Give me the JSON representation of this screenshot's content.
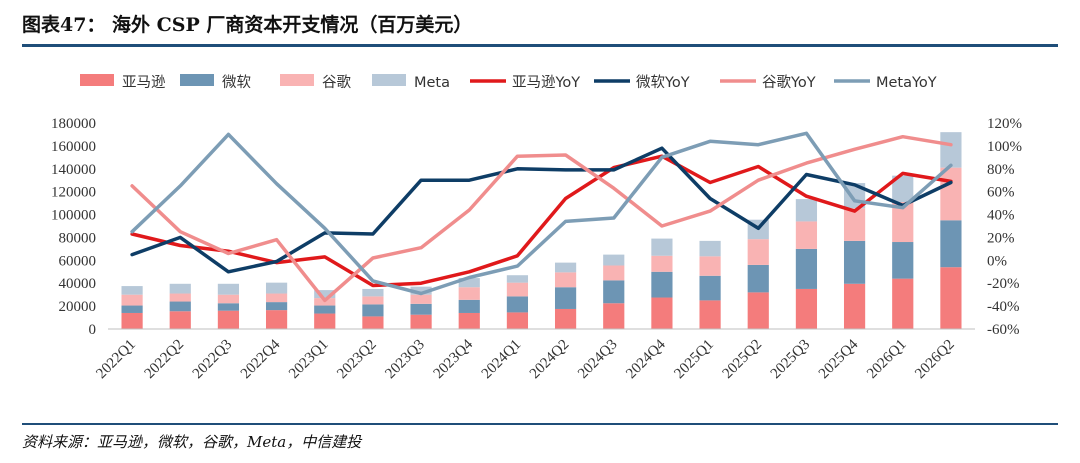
{
  "header": {
    "title": "图表47：  海外 CSP 厂商资本开支情况（百万美元）",
    "source": "资料来源：亚马逊，微软，谷歌，Meta，中信建投"
  },
  "colors": {
    "amazon_bar": "#f47c7c",
    "msft_bar": "#6d95b4",
    "google_bar": "#f9b3b3",
    "meta_bar": "#b7c8d8",
    "amazon_line": "#e0191b",
    "msft_line": "#0e3d66",
    "google_line": "#f08d8d",
    "meta_line": "#7d9db5",
    "rule": "#1f4e79"
  },
  "chart_data": {
    "type": "bar",
    "stacked": true,
    "categories": [
      "2022Q1",
      "2022Q2",
      "2022Q3",
      "2022Q4",
      "2023Q1",
      "2023Q2",
      "2023Q3",
      "2023Q4",
      "2024Q1",
      "2024Q2",
      "2024Q3",
      "2024Q4",
      "2025Q1",
      "2025Q2",
      "2025Q3",
      "2025Q4",
      "2026Q1",
      "2026Q2"
    ],
    "y_ticks": [
      "0",
      "20000",
      "40000",
      "60000",
      "80000",
      "100000",
      "120000",
      "140000",
      "160000",
      "180000"
    ],
    "ylim": [
      0,
      180000
    ],
    "y2_ticks": [
      "-60%",
      "-40%",
      "-20%",
      "0%",
      "20%",
      "40%",
      "60%",
      "80%",
      "100%",
      "120%"
    ],
    "y2lim": [
      -60,
      120
    ],
    "legend": [
      "亚马逊",
      "微软",
      "谷歌",
      "Meta",
      "亚马逊YoY",
      "微软YoY",
      "谷歌YoY",
      "MetaYoY"
    ],
    "bar_series": [
      {
        "name": "亚马逊",
        "values": [
          14000,
          15500,
          16000,
          16500,
          13500,
          11000,
          12500,
          14000,
          14500,
          17500,
          22500,
          27500,
          25000,
          32000,
          35000,
          39500,
          44000,
          54000
        ]
      },
      {
        "name": "微软",
        "values": [
          6500,
          8500,
          6500,
          7000,
          7000,
          10500,
          9500,
          11500,
          14000,
          19000,
          20000,
          22500,
          21500,
          24000,
          35000,
          37500,
          32000,
          41000
        ]
      },
      {
        "name": "谷歌",
        "values": [
          9500,
          7000,
          7500,
          7500,
          6500,
          7000,
          8000,
          11000,
          12000,
          13000,
          13000,
          14000,
          17000,
          22500,
          24000,
          28500,
          35000,
          46000
        ]
      },
      {
        "name": "Meta",
        "values": [
          7500,
          8500,
          9500,
          9500,
          7000,
          6500,
          7000,
          8000,
          6500,
          8500,
          9500,
          15000,
          13500,
          17000,
          19500,
          22000,
          23000,
          31000
        ]
      }
    ],
    "line_series": [
      {
        "name": "亚马逊YoY",
        "values": [
          23,
          13,
          8,
          -2,
          3,
          -22,
          -20,
          -10,
          4,
          54,
          81,
          91,
          68,
          82,
          56,
          43,
          76,
          69
        ]
      },
      {
        "name": "微软YoY",
        "values": [
          5,
          20,
          -10,
          -1,
          24,
          23,
          70,
          70,
          80,
          79,
          79,
          98,
          54,
          28,
          75,
          66,
          48,
          68
        ]
      },
      {
        "name": "谷歌YoY",
        "values": [
          65,
          25,
          6,
          18,
          -35,
          2,
          11,
          44,
          91,
          92,
          63,
          30,
          43,
          70,
          85,
          97,
          108,
          101
        ]
      },
      {
        "name": "MetaYoY",
        "values": [
          25,
          65,
          110,
          67,
          28,
          -18,
          -29,
          -15,
          -5,
          34,
          37,
          90,
          104,
          101,
          111,
          52,
          46,
          83
        ]
      }
    ]
  }
}
